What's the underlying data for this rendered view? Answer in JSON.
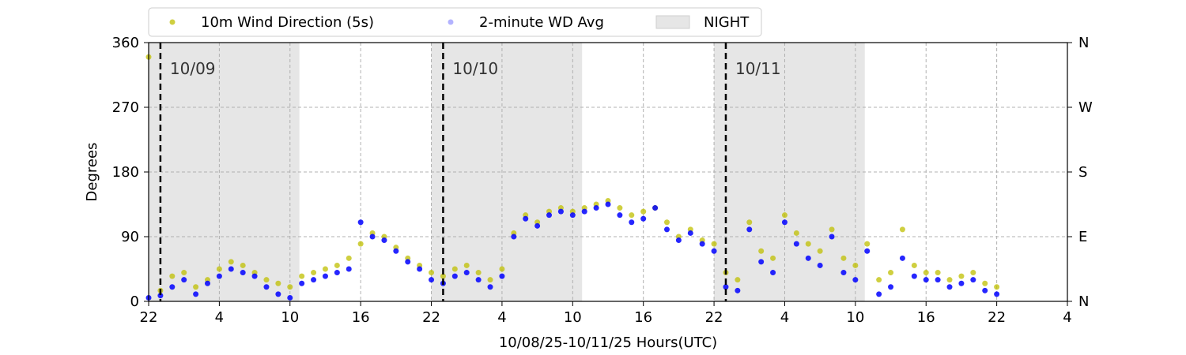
{
  "chart_data": {
    "type": "scatter",
    "title": "",
    "xlabel": "10/08/25-10/11/25  Hours(UTC)",
    "ylabel": "Degrees",
    "xlim": [
      0,
      78
    ],
    "ylim": [
      0,
      360
    ],
    "x_ticks": [
      {
        "x": 0,
        "label": "22"
      },
      {
        "x": 6,
        "label": "4"
      },
      {
        "x": 12,
        "label": "10"
      },
      {
        "x": 18,
        "label": "16"
      },
      {
        "x": 24,
        "label": "22"
      },
      {
        "x": 30,
        "label": "4"
      },
      {
        "x": 36,
        "label": "10"
      },
      {
        "x": 42,
        "label": "16"
      },
      {
        "x": 48,
        "label": "22"
      },
      {
        "x": 54,
        "label": "4"
      },
      {
        "x": 60,
        "label": "10"
      },
      {
        "x": 66,
        "label": "16"
      },
      {
        "x": 72,
        "label": "22"
      },
      {
        "x": 78,
        "label": "4"
      }
    ],
    "y_ticks": [
      0,
      90,
      180,
      270,
      360
    ],
    "y_right_ticks": [
      {
        "y": 0,
        "label": "N"
      },
      {
        "y": 90,
        "label": "E"
      },
      {
        "y": 180,
        "label": "S"
      },
      {
        "y": 270,
        "label": "W"
      },
      {
        "y": 360,
        "label": "N"
      }
    ],
    "grid": true,
    "legend_position": "top",
    "legend": [
      {
        "label": "10m Wind Direction (5s)",
        "color": "#bfbf00",
        "marker": "circle"
      },
      {
        "label": "2-minute WD Avg",
        "color": "#8080ff",
        "marker": "circle"
      },
      {
        "label": "NIGHT",
        "color": "#e0e0e0",
        "marker": "patch"
      }
    ],
    "night_periods": [
      [
        0,
        12.8
      ],
      [
        24,
        36.8
      ],
      [
        48,
        60.8
      ]
    ],
    "day_boundaries": [
      {
        "x": 1,
        "label": "10/09"
      },
      {
        "x": 25,
        "label": "10/10"
      },
      {
        "x": 49,
        "label": "10/11"
      }
    ],
    "series": [
      {
        "name": "10m Wind Direction (5s)",
        "color": "#bfbf00",
        "x": [
          0,
          1,
          2,
          3,
          4,
          5,
          6,
          7,
          8,
          9,
          10,
          11,
          12,
          13,
          14,
          15,
          16,
          17,
          18,
          19,
          20,
          21,
          22,
          23,
          24,
          25,
          26,
          27,
          28,
          29,
          30,
          31,
          32,
          33,
          34,
          35,
          36,
          37,
          38,
          39,
          40,
          41,
          42,
          43,
          44,
          45,
          46,
          47,
          48,
          49,
          50,
          51,
          52,
          53,
          54,
          55,
          56,
          57,
          58,
          59,
          60,
          61,
          62,
          63,
          64,
          65,
          66,
          67,
          68,
          69,
          70,
          71,
          72
        ],
        "values": [
          340,
          15,
          35,
          40,
          20,
          30,
          45,
          55,
          50,
          40,
          30,
          25,
          20,
          35,
          40,
          45,
          50,
          60,
          80,
          95,
          90,
          75,
          60,
          50,
          40,
          35,
          45,
          50,
          40,
          30,
          45,
          95,
          120,
          110,
          125,
          130,
          125,
          130,
          135,
          140,
          130,
          120,
          125,
          130,
          110,
          90,
          100,
          85,
          80,
          40,
          30,
          110,
          70,
          60,
          120,
          95,
          80,
          70,
          100,
          60,
          50,
          80,
          30,
          40,
          100,
          50,
          40,
          40,
          30,
          35,
          40,
          25,
          20
        ]
      },
      {
        "name": "2-minute WD Avg",
        "color": "#0000ff",
        "x": [
          0,
          1,
          2,
          3,
          4,
          5,
          6,
          7,
          8,
          9,
          10,
          11,
          12,
          13,
          14,
          15,
          16,
          17,
          18,
          19,
          20,
          21,
          22,
          23,
          24,
          25,
          26,
          27,
          28,
          29,
          30,
          31,
          32,
          33,
          34,
          35,
          36,
          37,
          38,
          39,
          40,
          41,
          42,
          43,
          44,
          45,
          46,
          47,
          48,
          49,
          50,
          51,
          52,
          53,
          54,
          55,
          56,
          57,
          58,
          59,
          60,
          61,
          62,
          63,
          64,
          65,
          66,
          67,
          68,
          69,
          70,
          71,
          72
        ],
        "values": [
          5,
          8,
          20,
          30,
          10,
          25,
          35,
          45,
          40,
          35,
          20,
          10,
          5,
          25,
          30,
          35,
          40,
          45,
          110,
          90,
          85,
          70,
          55,
          45,
          30,
          25,
          35,
          40,
          30,
          20,
          35,
          90,
          115,
          105,
          120,
          125,
          120,
          125,
          130,
          135,
          120,
          110,
          115,
          130,
          100,
          85,
          95,
          80,
          70,
          20,
          15,
          100,
          55,
          40,
          110,
          80,
          60,
          50,
          90,
          40,
          30,
          70,
          10,
          20,
          60,
          35,
          30,
          30,
          20,
          25,
          30,
          15,
          10
        ]
      }
    ]
  }
}
